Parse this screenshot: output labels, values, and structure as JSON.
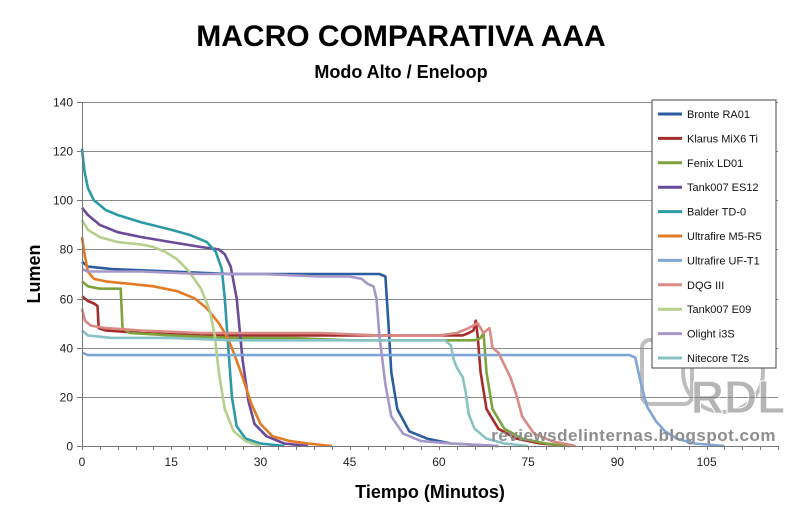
{
  "chart_data": {
    "type": "line",
    "title": "MACRO COMPARATIVA  AAA",
    "subtitle": "Modo Alto / Eneloop",
    "xlabel": "Tiempo (Minutos)",
    "ylabel": "Lumen",
    "xlim": [
      0,
      117
    ],
    "ylim": [
      0,
      140
    ],
    "xticks": [
      0,
      15,
      30,
      45,
      60,
      75,
      90,
      105
    ],
    "yticks": [
      0,
      20,
      40,
      60,
      80,
      100,
      120,
      140
    ],
    "grid": "horizontal",
    "legend_position": "right",
    "series": [
      {
        "name": "Bronte RA01",
        "color": "#2a5d9f",
        "points": [
          [
            0,
            75
          ],
          [
            1,
            73
          ],
          [
            5,
            72
          ],
          [
            15,
            71
          ],
          [
            25,
            70
          ],
          [
            35,
            70
          ],
          [
            45,
            70
          ],
          [
            50,
            70
          ],
          [
            51,
            69
          ],
          [
            51.5,
            50
          ],
          [
            52,
            30
          ],
          [
            53,
            15
          ],
          [
            55,
            6
          ],
          [
            58,
            3
          ],
          [
            62,
            1
          ],
          [
            70,
            0
          ]
        ]
      },
      {
        "name": "Klarus MiX6 Ti",
        "color": "#a62d2d",
        "points": [
          [
            0,
            61
          ],
          [
            1,
            59
          ],
          [
            2,
            58
          ],
          [
            2.6,
            57
          ],
          [
            2.8,
            48
          ],
          [
            4,
            47
          ],
          [
            10,
            46
          ],
          [
            20,
            45
          ],
          [
            30,
            45
          ],
          [
            40,
            45
          ],
          [
            50,
            45
          ],
          [
            60,
            45
          ],
          [
            64,
            45
          ],
          [
            65,
            46
          ],
          [
            65.8,
            47
          ],
          [
            66.2,
            51
          ],
          [
            66.5,
            45
          ],
          [
            67,
            30
          ],
          [
            68,
            15
          ],
          [
            70,
            7
          ],
          [
            73,
            3
          ],
          [
            77,
            1
          ],
          [
            82,
            0
          ]
        ]
      },
      {
        "name": "Fenix LD01",
        "color": "#7ea33c",
        "points": [
          [
            0,
            67
          ],
          [
            1,
            65
          ],
          [
            3,
            64
          ],
          [
            6.5,
            64
          ],
          [
            6.8,
            48
          ],
          [
            8,
            46
          ],
          [
            15,
            45
          ],
          [
            25,
            44
          ],
          [
            35,
            44
          ],
          [
            45,
            43
          ],
          [
            55,
            43
          ],
          [
            63,
            43
          ],
          [
            66,
            43
          ],
          [
            67,
            44
          ],
          [
            67.5,
            46
          ],
          [
            68,
            30
          ],
          [
            69,
            15
          ],
          [
            71,
            7
          ],
          [
            74,
            3
          ],
          [
            78,
            1
          ],
          [
            82,
            0
          ]
        ]
      },
      {
        "name": "Tank007 ES12",
        "color": "#6a4a99",
        "points": [
          [
            0,
            97
          ],
          [
            1,
            94
          ],
          [
            3,
            90
          ],
          [
            6,
            87
          ],
          [
            10,
            85
          ],
          [
            15,
            83
          ],
          [
            20,
            81
          ],
          [
            23,
            80
          ],
          [
            24,
            78
          ],
          [
            25,
            73
          ],
          [
            26,
            60
          ],
          [
            27,
            35
          ],
          [
            28,
            18
          ],
          [
            29,
            9
          ],
          [
            31,
            4
          ],
          [
            34,
            1
          ],
          [
            38,
            0
          ]
        ]
      },
      {
        "name": "Balder TD-0",
        "color": "#2c9aa6",
        "points": [
          [
            0,
            121
          ],
          [
            0.4,
            112
          ],
          [
            1,
            105
          ],
          [
            2,
            100
          ],
          [
            4,
            96
          ],
          [
            6,
            94
          ],
          [
            10,
            91
          ],
          [
            15,
            88
          ],
          [
            18,
            86
          ],
          [
            21,
            83
          ],
          [
            22.5,
            79
          ],
          [
            23.5,
            72
          ],
          [
            24,
            60
          ],
          [
            24.6,
            40
          ],
          [
            25.2,
            20
          ],
          [
            26,
            8
          ],
          [
            27.5,
            3
          ],
          [
            30,
            1
          ],
          [
            34,
            0
          ]
        ]
      },
      {
        "name": "Ultrafire M5-R5",
        "color": "#e37b26",
        "points": [
          [
            0,
            85
          ],
          [
            0.5,
            77
          ],
          [
            1,
            71
          ],
          [
            2,
            68
          ],
          [
            4,
            67
          ],
          [
            8,
            66
          ],
          [
            12,
            65
          ],
          [
            16,
            63
          ],
          [
            19,
            60
          ],
          [
            21,
            56
          ],
          [
            23,
            50
          ],
          [
            24.5,
            44
          ],
          [
            25.5,
            38
          ],
          [
            27,
            28
          ],
          [
            28.5,
            17
          ],
          [
            30,
            9
          ],
          [
            32,
            4
          ],
          [
            35,
            2
          ],
          [
            38,
            1
          ],
          [
            42,
            0
          ]
        ]
      },
      {
        "name": "Ultrafire UF-T1",
        "color": "#7ea6d6",
        "points": [
          [
            0,
            38
          ],
          [
            1,
            37
          ],
          [
            5,
            37
          ],
          [
            20,
            37
          ],
          [
            40,
            37
          ],
          [
            60,
            37
          ],
          [
            80,
            37
          ],
          [
            92,
            37
          ],
          [
            93,
            36
          ],
          [
            94,
            25
          ],
          [
            95,
            16
          ],
          [
            96.5,
            10
          ],
          [
            98,
            6
          ],
          [
            100,
            3
          ],
          [
            103,
            1
          ],
          [
            108,
            0
          ]
        ]
      },
      {
        "name": "DQG III",
        "color": "#d98a85",
        "points": [
          [
            0,
            56
          ],
          [
            0.5,
            51
          ],
          [
            1.5,
            49
          ],
          [
            4,
            48
          ],
          [
            10,
            47
          ],
          [
            20,
            46
          ],
          [
            30,
            46
          ],
          [
            40,
            46
          ],
          [
            50,
            45
          ],
          [
            60,
            45
          ],
          [
            63,
            46
          ],
          [
            65,
            48
          ],
          [
            66.5,
            50
          ],
          [
            67.5,
            46
          ],
          [
            68.5,
            48
          ],
          [
            69,
            40
          ],
          [
            70,
            38
          ],
          [
            71,
            33
          ],
          [
            72,
            28
          ],
          [
            73,
            21
          ],
          [
            74,
            12
          ],
          [
            76,
            5
          ],
          [
            79,
            2
          ],
          [
            83,
            0
          ]
        ]
      },
      {
        "name": "Tank007 E09",
        "color": "#b6cf8c",
        "points": [
          [
            0,
            92
          ],
          [
            1,
            88
          ],
          [
            3,
            85
          ],
          [
            6,
            83
          ],
          [
            10,
            82
          ],
          [
            12,
            81
          ],
          [
            14,
            79
          ],
          [
            16,
            76
          ],
          [
            18,
            71
          ],
          [
            20,
            64
          ],
          [
            21.5,
            55
          ],
          [
            22.3,
            45
          ],
          [
            23,
            30
          ],
          [
            24,
            15
          ],
          [
            25.5,
            6
          ],
          [
            27.5,
            2
          ],
          [
            30,
            0
          ]
        ]
      },
      {
        "name": "Olight i3S",
        "color": "#a797c9",
        "points": [
          [
            0,
            72
          ],
          [
            1,
            71
          ],
          [
            10,
            71
          ],
          [
            20,
            70
          ],
          [
            30,
            70
          ],
          [
            40,
            69
          ],
          [
            45,
            69
          ],
          [
            47,
            68
          ],
          [
            48,
            66
          ],
          [
            49,
            65
          ],
          [
            49.5,
            60
          ],
          [
            50,
            45
          ],
          [
            51,
            25
          ],
          [
            52,
            12
          ],
          [
            54,
            5
          ],
          [
            57,
            2
          ],
          [
            62,
            1
          ],
          [
            70,
            0
          ]
        ]
      },
      {
        "name": "Nitecore T2s",
        "color": "#87c2c4",
        "points": [
          [
            0,
            47
          ],
          [
            0.5,
            46
          ],
          [
            1,
            45
          ],
          [
            5,
            44
          ],
          [
            15,
            44
          ],
          [
            25,
            43
          ],
          [
            35,
            43
          ],
          [
            45,
            43
          ],
          [
            55,
            43
          ],
          [
            61,
            43
          ],
          [
            62,
            41
          ],
          [
            62.5,
            35
          ],
          [
            63,
            32
          ],
          [
            64,
            28
          ],
          [
            64.5,
            22
          ],
          [
            65,
            13
          ],
          [
            66,
            7
          ],
          [
            68,
            3
          ],
          [
            71,
            1
          ],
          [
            75,
            0
          ]
        ]
      }
    ],
    "watermark": {
      "logo_text": "RDL",
      "url_text": "reviewsdelinternas.blogspot.com"
    }
  }
}
